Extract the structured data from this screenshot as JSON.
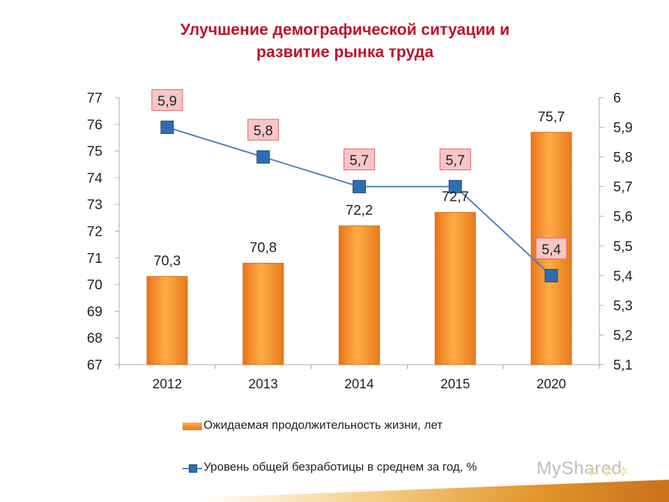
{
  "title": {
    "line1": "Улучшение демографической ситуации и",
    "line2": "развитие рынка труда"
  },
  "chart_data": {
    "type": "bar",
    "categories": [
      "2012",
      "2013",
      "2014",
      "2015",
      "2020"
    ],
    "series": [
      {
        "name": "Ожидаемая продолжительность жизни, лет",
        "type": "bar",
        "axis": "left",
        "values": [
          70.3,
          70.8,
          72.2,
          72.7,
          75.7
        ],
        "labels": [
          "70,3",
          "70,8",
          "72,2",
          "72,7",
          "75,7"
        ],
        "color": "#f08a24"
      },
      {
        "name": "Уровень общей безработицы в среднем за год, %",
        "type": "line",
        "axis": "right",
        "values": [
          5.9,
          5.8,
          5.7,
          5.7,
          5.4
        ],
        "labels": [
          "5,9",
          "5,8",
          "5,7",
          "5,7",
          "5,4"
        ],
        "color": "#2f6db3"
      }
    ],
    "left_axis": {
      "ylim": [
        67,
        77
      ],
      "ticks": [
        "67",
        "68",
        "69",
        "70",
        "71",
        "72",
        "73",
        "74",
        "75",
        "76",
        "77"
      ]
    },
    "right_axis": {
      "ylim": [
        5.1,
        6
      ],
      "ticks": [
        "5,1",
        "5,2",
        "5,3",
        "5,4",
        "5,5",
        "5,6",
        "5,7",
        "5,8",
        "5,9",
        "6"
      ]
    },
    "grid": false,
    "legend_position": "bottom"
  },
  "watermark": "MyShared"
}
